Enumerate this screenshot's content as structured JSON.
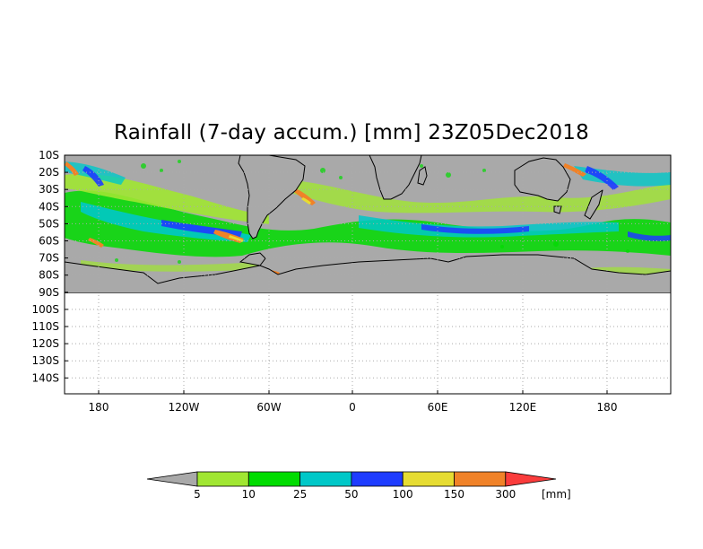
{
  "title": "Rainfall (7-day accum.) [mm] 23Z05Dec2018",
  "map": {
    "lat_labels": [
      "10S",
      "20S",
      "30S",
      "40S",
      "50S",
      "60S",
      "70S",
      "80S",
      "90S",
      "100S",
      "110S",
      "120S",
      "130S",
      "140S"
    ],
    "lon_labels": [
      "180",
      "120W",
      "60W",
      "0",
      "60E",
      "120E",
      "180"
    ],
    "colors": {
      "land_ocean_no_rain": "#a9a9a9",
      "coastline": "#000000",
      "gridline": "#aaaaaa"
    }
  },
  "colorbar": {
    "bins": [
      {
        "color": "#a9a9a9"
      },
      {
        "color": "#a0e632"
      },
      {
        "color": "#00dc00"
      },
      {
        "color": "#00c8c8"
      },
      {
        "color": "#1e3cff"
      },
      {
        "color": "#e6dc32"
      },
      {
        "color": "#f08228"
      },
      {
        "color": "#fa3c3c"
      }
    ],
    "labels": [
      "5",
      "10",
      "25",
      "50",
      "100",
      "150",
      "300"
    ],
    "unit": "[mm]"
  }
}
